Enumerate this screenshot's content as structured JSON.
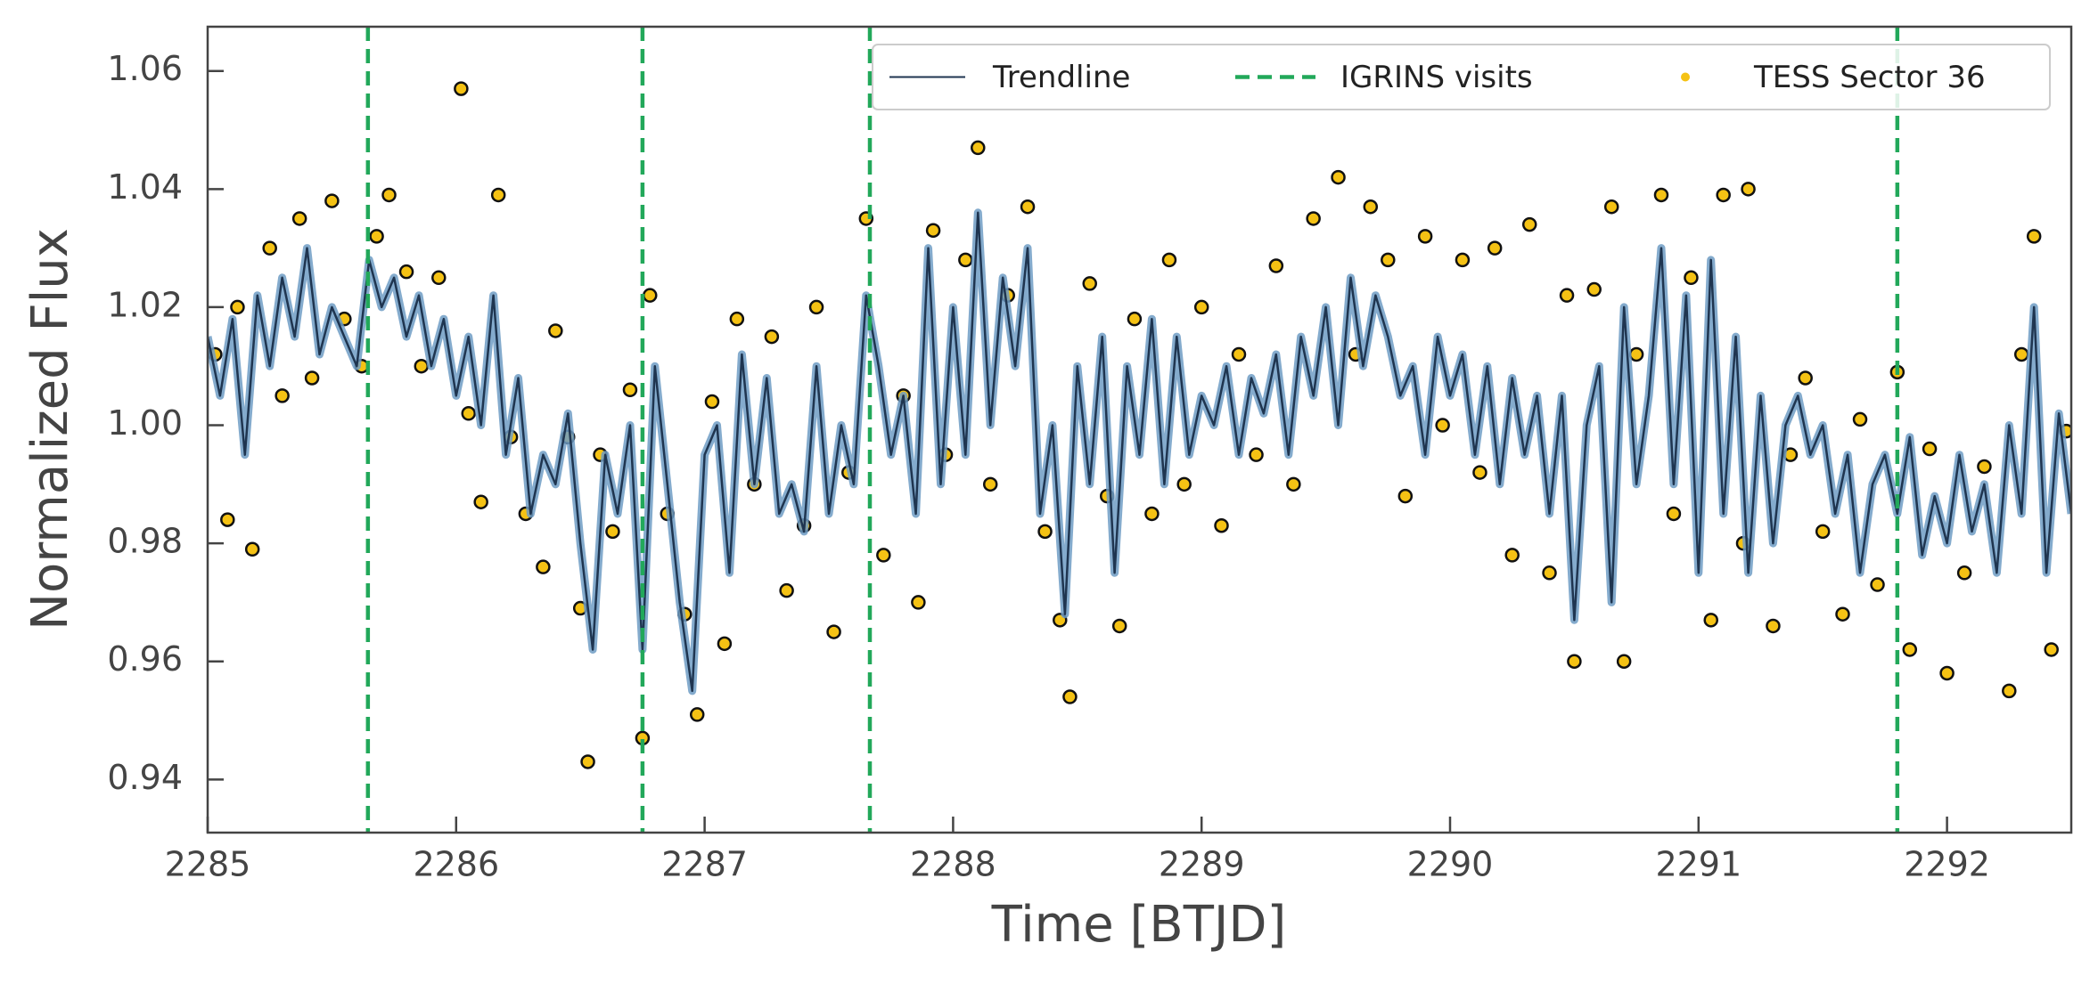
{
  "chart_data": {
    "type": "scatter",
    "xlabel": "Time [BTJD]",
    "ylabel": "Normalized Flux",
    "xlim": [
      2285,
      2292.5
    ],
    "ylim": [
      0.931,
      1.0675
    ],
    "xticks": [
      2285,
      2286,
      2287,
      2288,
      2289,
      2290,
      2291,
      2292
    ],
    "yticks": [
      0.94,
      0.96,
      0.98,
      {
        "value": 1,
        "label": "1.00"
      },
      1.02,
      1.04,
      1.06
    ],
    "legend": "upper right",
    "series": [
      {
        "name": "Trendline",
        "type": "line",
        "color": "#1f3550",
        "halo": "#6f9cc4",
        "x": [
          2285.0,
          2285.05,
          2285.1,
          2285.15,
          2285.2,
          2285.25,
          2285.3,
          2285.35,
          2285.4,
          2285.45,
          2285.5,
          2285.55,
          2285.6,
          2285.65,
          2285.7,
          2285.75,
          2285.8,
          2285.85,
          2285.9,
          2285.95,
          2286.0,
          2286.05,
          2286.1,
          2286.15,
          2286.2,
          2286.25,
          2286.3,
          2286.35,
          2286.4,
          2286.45,
          2286.5,
          2286.55,
          2286.6,
          2286.65,
          2286.7,
          2286.75,
          2286.8,
          2286.85,
          2286.9,
          2286.95,
          2287.0,
          2287.05,
          2287.1,
          2287.15,
          2287.2,
          2287.25,
          2287.3,
          2287.35,
          2287.4,
          2287.45,
          2287.5,
          2287.55,
          2287.6,
          2287.65,
          2287.7,
          2287.75,
          2287.8,
          2287.85,
          2287.9,
          2287.95,
          2288.0,
          2288.05,
          2288.1,
          2288.15,
          2288.2,
          2288.25,
          2288.3,
          2288.35,
          2288.4,
          2288.45,
          2288.5,
          2288.55,
          2288.6,
          2288.65,
          2288.7,
          2288.75,
          2288.8,
          2288.85,
          2288.9,
          2288.95,
          2289.0,
          2289.05,
          2289.1,
          2289.15,
          2289.2,
          2289.25,
          2289.3,
          2289.35,
          2289.4,
          2289.45,
          2289.5,
          2289.55,
          2289.6,
          2289.65,
          2289.7,
          2289.75,
          2289.8,
          2289.85,
          2289.9,
          2289.95,
          2290.0,
          2290.05,
          2290.1,
          2290.15,
          2290.2,
          2290.25,
          2290.3,
          2290.35,
          2290.4,
          2290.45,
          2290.5,
          2290.55,
          2290.6,
          2290.65,
          2290.7,
          2290.75,
          2290.8,
          2290.85,
          2290.9,
          2290.95,
          2291.0,
          2291.05,
          2291.1,
          2291.15,
          2291.2,
          2291.25,
          2291.3,
          2291.35,
          2291.4,
          2291.45,
          2291.5,
          2291.55,
          2291.6,
          2291.65,
          2291.7,
          2291.75,
          2291.8,
          2291.85,
          2291.9,
          2291.95,
          2292.0,
          2292.05,
          2292.1,
          2292.15,
          2292.2,
          2292.25,
          2292.3,
          2292.35,
          2292.4,
          2292.45,
          2292.5
        ],
        "values": [
          1.015,
          1.005,
          1.018,
          0.995,
          1.022,
          1.01,
          1.025,
          1.015,
          1.03,
          1.012,
          1.02,
          1.015,
          1.01,
          1.028,
          1.02,
          1.025,
          1.015,
          1.022,
          1.01,
          1.018,
          1.005,
          1.015,
          1.0,
          1.022,
          0.995,
          1.008,
          0.985,
          0.995,
          0.99,
          1.002,
          0.98,
          0.962,
          0.995,
          0.985,
          1.0,
          0.962,
          1.01,
          0.99,
          0.97,
          0.955,
          0.995,
          1.0,
          0.975,
          1.012,
          0.99,
          1.008,
          0.985,
          0.99,
          0.982,
          1.01,
          0.985,
          1.0,
          0.99,
          1.022,
          1.01,
          0.995,
          1.005,
          0.985,
          1.03,
          0.99,
          1.02,
          0.995,
          1.036,
          1.0,
          1.025,
          1.01,
          1.03,
          0.985,
          1.0,
          0.968,
          1.01,
          0.99,
          1.015,
          0.975,
          1.01,
          0.995,
          1.018,
          0.99,
          1.015,
          0.995,
          1.005,
          1.0,
          1.01,
          0.995,
          1.008,
          1.002,
          1.012,
          0.995,
          1.015,
          1.005,
          1.02,
          1.0,
          1.025,
          1.01,
          1.022,
          1.015,
          1.005,
          1.01,
          0.995,
          1.015,
          1.005,
          1.012,
          0.995,
          1.01,
          0.99,
          1.008,
          0.995,
          1.005,
          0.985,
          1.005,
          0.967,
          1.0,
          1.01,
          0.97,
          1.02,
          0.99,
          1.005,
          1.03,
          0.99,
          1.022,
          0.975,
          1.028,
          0.985,
          1.015,
          0.975,
          1.005,
          0.98,
          1.0,
          1.005,
          0.995,
          1.0,
          0.985,
          0.995,
          0.975,
          0.99,
          0.995,
          0.985,
          0.998,
          0.978,
          0.988,
          0.98,
          0.995,
          0.982,
          0.99,
          0.975,
          1.0,
          0.985,
          1.02,
          0.975,
          1.002,
          0.985
        ]
      },
      {
        "name": "IGRINS visits",
        "type": "vline",
        "color": "#22a85a",
        "x": [
          2285.645,
          2286.75,
          2287.665,
          2291.8
        ]
      },
      {
        "name": "TESS Sector 36",
        "type": "scatter",
        "color": "#f5c214",
        "edgecolor": "#111111",
        "x": [
          2285.03,
          2285.08,
          2285.12,
          2285.18,
          2285.25,
          2285.3,
          2285.37,
          2285.42,
          2285.5,
          2285.55,
          2285.62,
          2285.68,
          2285.73,
          2285.8,
          2285.86,
          2285.93,
          2286.02,
          2286.05,
          2286.1,
          2286.17,
          2286.22,
          2286.28,
          2286.35,
          2286.4,
          2286.45,
          2286.5,
          2286.53,
          2286.58,
          2286.63,
          2286.7,
          2286.75,
          2286.78,
          2286.85,
          2286.92,
          2286.97,
          2287.03,
          2287.08,
          2287.13,
          2287.2,
          2287.27,
          2287.33,
          2287.4,
          2287.45,
          2287.52,
          2287.58,
          2287.65,
          2287.72,
          2287.8,
          2287.86,
          2287.92,
          2287.97,
          2288.05,
          2288.1,
          2288.15,
          2288.22,
          2288.3,
          2288.37,
          2288.43,
          2288.47,
          2288.55,
          2288.62,
          2288.67,
          2288.73,
          2288.8,
          2288.87,
          2288.93,
          2289.0,
          2289.08,
          2289.15,
          2289.22,
          2289.3,
          2289.37,
          2289.45,
          2289.55,
          2289.62,
          2289.68,
          2289.75,
          2289.82,
          2289.9,
          2289.97,
          2290.05,
          2290.12,
          2290.18,
          2290.25,
          2290.32,
          2290.4,
          2290.47,
          2290.5,
          2290.58,
          2290.65,
          2290.7,
          2290.75,
          2290.85,
          2290.9,
          2290.97,
          2291.05,
          2291.1,
          2291.18,
          2291.2,
          2291.3,
          2291.37,
          2291.43,
          2291.5,
          2291.58,
          2291.65,
          2291.72,
          2291.8,
          2291.85,
          2291.93,
          2292.0,
          2292.07,
          2292.15,
          2292.25,
          2292.3,
          2292.35,
          2292.42,
          2292.48
        ],
        "values": [
          1.012,
          0.984,
          1.02,
          0.979,
          1.03,
          1.005,
          1.035,
          1.008,
          1.038,
          1.018,
          1.01,
          1.032,
          1.039,
          1.026,
          1.01,
          1.025,
          1.057,
          1.002,
          0.987,
          1.039,
          0.998,
          0.985,
          0.976,
          1.016,
          0.998,
          0.969,
          0.943,
          0.995,
          0.982,
          1.006,
          0.947,
          1.022,
          0.985,
          0.968,
          0.951,
          1.004,
          0.963,
          1.018,
          0.99,
          1.015,
          0.972,
          0.983,
          1.02,
          0.965,
          0.992,
          1.035,
          0.978,
          1.005,
          0.97,
          1.033,
          0.995,
          1.028,
          1.047,
          0.99,
          1.022,
          1.037,
          0.982,
          0.967,
          0.954,
          1.024,
          0.988,
          0.966,
          1.018,
          0.985,
          1.028,
          0.99,
          1.02,
          0.983,
          1.012,
          0.995,
          1.027,
          0.99,
          1.035,
          1.042,
          1.012,
          1.037,
          1.028,
          0.988,
          1.032,
          1.0,
          1.028,
          0.992,
          1.03,
          0.978,
          1.034,
          0.975,
          1.022,
          0.96,
          1.023,
          1.037,
          0.96,
          1.012,
          1.039,
          0.985,
          1.025,
          0.967,
          1.039,
          0.98,
          1.04,
          0.966,
          0.995,
          1.008,
          0.982,
          0.968,
          1.001,
          0.973,
          1.009,
          0.962,
          0.996,
          0.958,
          0.975,
          0.993,
          0.955,
          1.012,
          1.032,
          0.962,
          0.999
        ]
      }
    ]
  }
}
